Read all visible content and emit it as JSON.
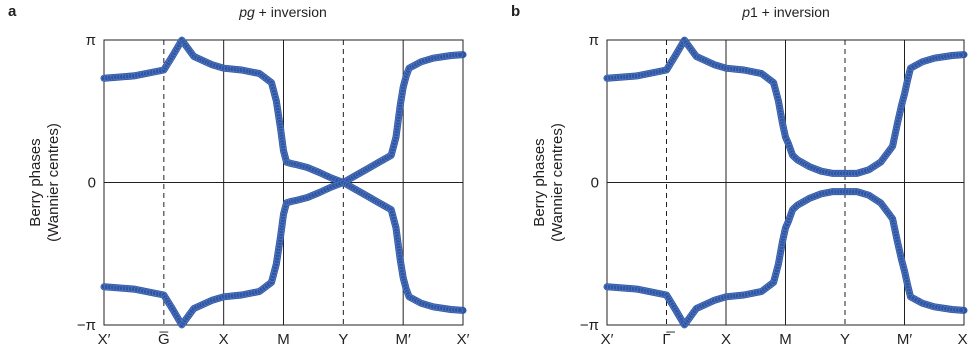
{
  "chart_data": [
    {
      "type": "line",
      "panel_label": "a",
      "title": "pg + inversion",
      "title_italic_part": "pg",
      "title_rest": " + inversion",
      "ylabel_line1": "Berry phases",
      "ylabel_line2": "(Wannier centres)",
      "x_ticks": [
        "X′",
        "G̅",
        "X",
        "M",
        "Y",
        "M′",
        "X′"
      ],
      "x_tick_styles": [
        "solid",
        "dashed",
        "solid",
        "solid",
        "dashed",
        "solid",
        "solid"
      ],
      "y_ticks": [
        "π",
        "0",
        "−π"
      ],
      "ylim": [
        -3.1416,
        3.1416
      ],
      "series": [
        {
          "color": "#2e55a3",
          "x": [
            0.0,
            0.5,
            1.0,
            1.15,
            1.3,
            1.5,
            1.8,
            2.0,
            2.3,
            2.6,
            2.8,
            2.88,
            2.95,
            3.0,
            3.05,
            3.12,
            3.2,
            3.4,
            3.6,
            3.8,
            4.0,
            4.2,
            4.4,
            4.6,
            4.8,
            4.88,
            4.95,
            5.0,
            5.05,
            5.1,
            5.3,
            5.5,
            5.8,
            6.0
          ],
          "y": [
            2.3,
            2.35,
            2.48,
            2.8,
            3.14,
            2.78,
            2.6,
            2.52,
            2.48,
            2.4,
            2.2,
            1.8,
            1.2,
            0.7,
            0.45,
            0.42,
            0.4,
            0.33,
            0.22,
            0.1,
            0.0,
            0.15,
            0.3,
            0.45,
            0.6,
            1.0,
            1.7,
            2.1,
            2.35,
            2.52,
            2.66,
            2.74,
            2.8,
            2.82
          ]
        },
        {
          "color": "#2e55a3",
          "x": [
            0.0,
            0.5,
            1.0,
            1.15,
            1.3,
            1.5,
            1.8,
            2.0,
            2.3,
            2.6,
            2.8,
            2.88,
            2.95,
            3.0,
            3.05,
            3.12,
            3.2,
            3.4,
            3.6,
            3.8,
            4.0,
            4.2,
            4.4,
            4.6,
            4.8,
            4.88,
            4.95,
            5.0,
            5.05,
            5.1,
            5.3,
            5.5,
            5.8,
            6.0
          ],
          "y": [
            -2.3,
            -2.35,
            -2.48,
            -2.8,
            -3.14,
            -2.78,
            -2.6,
            -2.52,
            -2.48,
            -2.4,
            -2.2,
            -1.8,
            -1.2,
            -0.7,
            -0.45,
            -0.42,
            -0.4,
            -0.33,
            -0.22,
            -0.1,
            0.0,
            -0.15,
            -0.3,
            -0.45,
            -0.6,
            -1.0,
            -1.7,
            -2.1,
            -2.35,
            -2.52,
            -2.66,
            -2.74,
            -2.8,
            -2.82
          ]
        }
      ]
    },
    {
      "type": "line",
      "panel_label": "b",
      "title": "p1 + inversion",
      "title_italic_part": "p",
      "title_rest": "1 + inversion",
      "ylabel_line1": "Berry phases",
      "ylabel_line2": "(Wannier centres)",
      "x_ticks": [
        "X′",
        "Γ̅",
        "X",
        "M",
        "Y",
        "M′",
        "X′"
      ],
      "x_tick_styles": [
        "solid",
        "dashed",
        "solid",
        "solid",
        "dashed",
        "solid",
        "solid"
      ],
      "y_ticks": [
        "π",
        "0",
        "−π"
      ],
      "ylim": [
        -3.1416,
        3.1416
      ],
      "series": [
        {
          "color": "#2e55a3",
          "x": [
            0.0,
            0.5,
            1.0,
            1.15,
            1.3,
            1.5,
            1.8,
            2.0,
            2.3,
            2.6,
            2.8,
            2.88,
            2.95,
            3.0,
            3.05,
            3.12,
            3.2,
            3.4,
            3.6,
            3.8,
            4.0,
            4.2,
            4.4,
            4.6,
            4.8,
            4.88,
            4.95,
            5.0,
            5.05,
            5.1,
            5.3,
            5.5,
            5.8,
            6.0
          ],
          "y": [
            2.3,
            2.35,
            2.48,
            2.8,
            3.14,
            2.78,
            2.6,
            2.52,
            2.48,
            2.4,
            2.2,
            1.8,
            1.3,
            1.0,
            0.85,
            0.6,
            0.5,
            0.35,
            0.25,
            0.2,
            0.2,
            0.2,
            0.28,
            0.45,
            0.8,
            1.3,
            1.7,
            1.95,
            2.25,
            2.52,
            2.66,
            2.74,
            2.8,
            2.82
          ]
        },
        {
          "color": "#2e55a3",
          "x": [
            0.0,
            0.5,
            1.0,
            1.15,
            1.3,
            1.5,
            1.8,
            2.0,
            2.3,
            2.6,
            2.8,
            2.88,
            2.95,
            3.0,
            3.05,
            3.12,
            3.2,
            3.4,
            3.6,
            3.8,
            4.0,
            4.2,
            4.4,
            4.6,
            4.8,
            4.88,
            4.95,
            5.0,
            5.05,
            5.1,
            5.3,
            5.5,
            5.8,
            6.0
          ],
          "y": [
            -2.3,
            -2.35,
            -2.48,
            -2.8,
            -3.14,
            -2.78,
            -2.6,
            -2.52,
            -2.48,
            -2.4,
            -2.2,
            -1.8,
            -1.3,
            -1.0,
            -0.85,
            -0.6,
            -0.5,
            -0.35,
            -0.25,
            -0.2,
            -0.2,
            -0.2,
            -0.28,
            -0.45,
            -0.8,
            -1.3,
            -1.7,
            -1.95,
            -2.25,
            -2.52,
            -2.66,
            -2.74,
            -2.8,
            -2.82
          ]
        }
      ]
    }
  ]
}
